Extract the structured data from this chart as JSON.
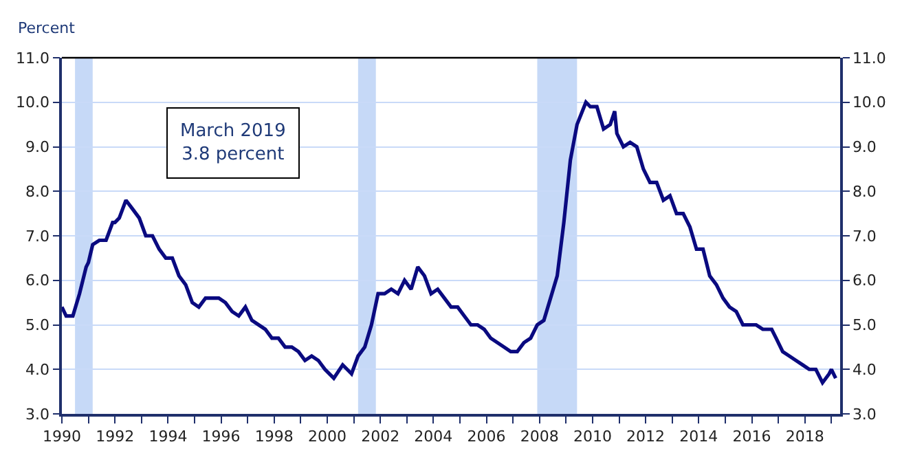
{
  "chart_data": {
    "type": "line",
    "ylabel": "Percent",
    "annotations": [
      "March 2019\n3.8 percent"
    ],
    "x": [
      "1990-01",
      "1990-03",
      "1990-06",
      "1990-09",
      "1990-12",
      "1991-01",
      "1991-03",
      "1991-06",
      "1991-09",
      "1991-12",
      "1992-01",
      "1992-03",
      "1992-06",
      "1992-09",
      "1992-12",
      "1993-03",
      "1993-06",
      "1993-09",
      "1993-12",
      "1994-03",
      "1994-06",
      "1994-09",
      "1994-12",
      "1995-03",
      "1995-06",
      "1995-09",
      "1995-12",
      "1996-03",
      "1996-06",
      "1996-09",
      "1996-12",
      "1997-03",
      "1997-06",
      "1997-09",
      "1997-12",
      "1998-03",
      "1998-06",
      "1998-09",
      "1998-12",
      "1999-03",
      "1999-06",
      "1999-09",
      "1999-12",
      "2000-04",
      "2000-08",
      "2000-12",
      "2001-03",
      "2001-06",
      "2001-09",
      "2001-12",
      "2002-03",
      "2002-06",
      "2002-09",
      "2002-12",
      "2003-03",
      "2003-06",
      "2003-09",
      "2003-12",
      "2004-03",
      "2004-06",
      "2004-09",
      "2004-12",
      "2005-03",
      "2005-06",
      "2005-09",
      "2005-12",
      "2006-03",
      "2006-06",
      "2006-09",
      "2006-12",
      "2007-03",
      "2007-06",
      "2007-09",
      "2007-12",
      "2008-03",
      "2008-06",
      "2008-09",
      "2008-12",
      "2009-03",
      "2009-06",
      "2009-10",
      "2009-12",
      "2010-03",
      "2010-06",
      "2010-09",
      "2010-11",
      "2010-12",
      "2011-03",
      "2011-06",
      "2011-09",
      "2011-12",
      "2012-03",
      "2012-06",
      "2012-09",
      "2012-12",
      "2013-03",
      "2013-06",
      "2013-09",
      "2013-12",
      "2014-03",
      "2014-06",
      "2014-09",
      "2014-12",
      "2015-03",
      "2015-06",
      "2015-09",
      "2015-12",
      "2016-03",
      "2016-06",
      "2016-10",
      "2016-12",
      "2017-03",
      "2017-06",
      "2017-09",
      "2017-12",
      "2018-03",
      "2018-06",
      "2018-09",
      "2018-12",
      "2019-01",
      "2019-03"
    ],
    "series": [
      {
        "color": "#0a0a80",
        "values": [
          5.4,
          5.2,
          5.2,
          5.7,
          6.3,
          6.4,
          6.8,
          6.9,
          6.9,
          7.3,
          7.3,
          7.4,
          7.8,
          7.6,
          7.4,
          7.0,
          7.0,
          6.7,
          6.5,
          6.5,
          6.1,
          5.9,
          5.5,
          5.4,
          5.6,
          5.6,
          5.6,
          5.5,
          5.3,
          5.2,
          5.4,
          5.1,
          5.0,
          4.9,
          4.7,
          4.7,
          4.5,
          4.5,
          4.4,
          4.2,
          4.3,
          4.2,
          4.0,
          3.8,
          4.1,
          3.9,
          4.3,
          4.5,
          5.0,
          5.7,
          5.7,
          5.8,
          5.7,
          6.0,
          5.8,
          6.3,
          6.1,
          5.7,
          5.8,
          5.6,
          5.4,
          5.4,
          5.2,
          5.0,
          5.0,
          4.9,
          4.7,
          4.6,
          4.5,
          4.4,
          4.4,
          4.6,
          4.7,
          5.0,
          5.1,
          5.6,
          6.1,
          7.3,
          8.7,
          9.5,
          10.0,
          9.9,
          9.9,
          9.4,
          9.5,
          9.8,
          9.3,
          9.0,
          9.1,
          9.0,
          8.5,
          8.2,
          8.2,
          7.8,
          7.9,
          7.5,
          7.5,
          7.2,
          6.7,
          6.7,
          6.1,
          5.9,
          5.6,
          5.4,
          5.3,
          5.0,
          5.0,
          5.0,
          4.9,
          4.9,
          4.7,
          4.4,
          4.3,
          4.2,
          4.1,
          4.0,
          4.0,
          3.7,
          3.9,
          4.0,
          3.8
        ]
      }
    ],
    "xlim": [
      "1990-01",
      "2019-05"
    ],
    "xticks": [
      {
        "value": "1990",
        "label": "1990"
      },
      {
        "value": "1991",
        "label": null
      },
      {
        "value": "1992",
        "label": "1992"
      },
      {
        "value": "1993",
        "label": null
      },
      {
        "value": "1994",
        "label": "1994"
      },
      {
        "value": "1995",
        "label": null
      },
      {
        "value": "1996",
        "label": "1996"
      },
      {
        "value": "1997",
        "label": null
      },
      {
        "value": "1998",
        "label": "1998"
      },
      {
        "value": "1999",
        "label": null
      },
      {
        "value": "2000",
        "label": "2000"
      },
      {
        "value": "2001",
        "label": null
      },
      {
        "value": "2002",
        "label": "2002"
      },
      {
        "value": "2003",
        "label": null
      },
      {
        "value": "2004",
        "label": "2004"
      },
      {
        "value": "2005",
        "label": null
      },
      {
        "value": "2006",
        "label": "2006"
      },
      {
        "value": "2007",
        "label": null
      },
      {
        "value": "2008",
        "label": "2008"
      },
      {
        "value": "2009",
        "label": null
      },
      {
        "value": "2010",
        "label": "2010"
      },
      {
        "value": "2011",
        "label": null
      },
      {
        "value": "2012",
        "label": "2012"
      },
      {
        "value": "2013",
        "label": null
      },
      {
        "value": "2014",
        "label": "2014"
      },
      {
        "value": "2015",
        "label": null
      },
      {
        "value": "2016",
        "label": "2016"
      },
      {
        "value": "2017",
        "label": null
      },
      {
        "value": "2018",
        "label": "2018"
      },
      {
        "value": "2019",
        "label": null
      }
    ],
    "ylim": [
      3,
      11
    ],
    "yticks": [
      {
        "value": 3,
        "label": "3.0"
      },
      {
        "value": 4,
        "label": "4.0"
      },
      {
        "value": 5,
        "label": "5.0"
      },
      {
        "value": 6,
        "label": "6.0"
      },
      {
        "value": 7,
        "label": "7.0"
      },
      {
        "value": 8,
        "label": "8.0"
      },
      {
        "value": 9,
        "label": "9.0"
      },
      {
        "value": 10,
        "label": "10.0"
      },
      {
        "value": 11,
        "label": "11.0"
      }
    ],
    "y2lim": [
      3,
      11
    ],
    "y2ticks": [
      {
        "value": 3,
        "label": "3.0"
      },
      {
        "value": 4,
        "label": "4.0"
      },
      {
        "value": 5,
        "label": "5.0"
      },
      {
        "value": 6,
        "label": "6.0"
      },
      {
        "value": 7,
        "label": "7.0"
      },
      {
        "value": 8,
        "label": "8.0"
      },
      {
        "value": 9,
        "label": "9.0"
      },
      {
        "value": 10,
        "label": "10.0"
      },
      {
        "value": 11,
        "label": "11.0"
      }
    ],
    "bands": [
      {
        "axis": "x",
        "from": "1990-07",
        "to": "1991-03",
        "color": "#c6d9f7"
      },
      {
        "axis": "x",
        "from": "2001-03",
        "to": "2001-11",
        "color": "#c6d9f7"
      },
      {
        "axis": "x",
        "from": "2007-12",
        "to": "2009-06",
        "color": "#c6d9f7"
      }
    ],
    "grid": "y",
    "marker": "none",
    "line_style": "solid"
  }
}
